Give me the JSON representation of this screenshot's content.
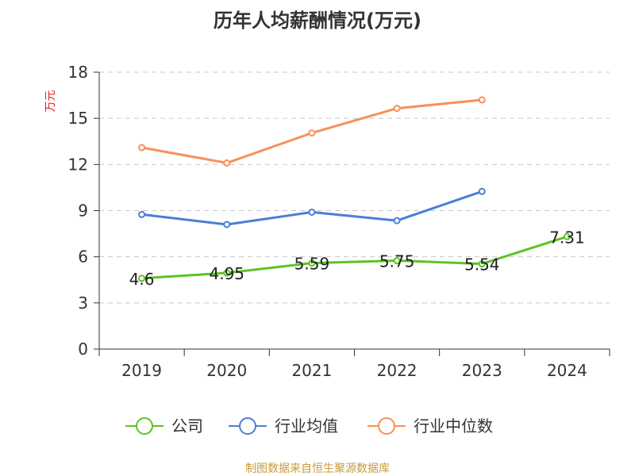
{
  "chart_data": {
    "type": "line",
    "title": "历年人均薪酬情况(万元)",
    "ylabel": "万元",
    "ylabel_color": "#e02020",
    "categories": [
      "2019",
      "2020",
      "2021",
      "2022",
      "2023",
      "2024"
    ],
    "ylim": [
      0,
      18
    ],
    "yticks": [
      0,
      3,
      6,
      9,
      12,
      15,
      18
    ],
    "grid": true,
    "legend_position": "bottom",
    "series": [
      {
        "name": "公司",
        "color": "#5cc424",
        "values": [
          4.6,
          4.95,
          5.59,
          5.75,
          5.54,
          7.31
        ],
        "labels": [
          "4.6",
          "4.95",
          "5.59",
          "5.75",
          "5.54",
          "7.31"
        ],
        "show_labels": true
      },
      {
        "name": "行业均值",
        "color": "#4a7fd6",
        "values": [
          8.75,
          8.1,
          8.9,
          8.35,
          10.25,
          null
        ],
        "show_labels": false
      },
      {
        "name": "行业中位数",
        "color": "#f79158",
        "values": [
          13.1,
          12.1,
          14.05,
          15.65,
          16.2,
          null
        ],
        "show_labels": false
      }
    ]
  },
  "footer": {
    "source": "制图数据来自恒生聚源数据库"
  }
}
